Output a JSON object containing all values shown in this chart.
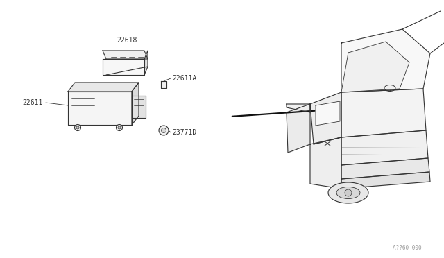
{
  "bg_color": "#ffffff",
  "line_color": "#333333",
  "label_color": "#333333",
  "watermark": "A??60 000",
  "figsize": [
    6.4,
    3.72
  ],
  "dpi": 100
}
